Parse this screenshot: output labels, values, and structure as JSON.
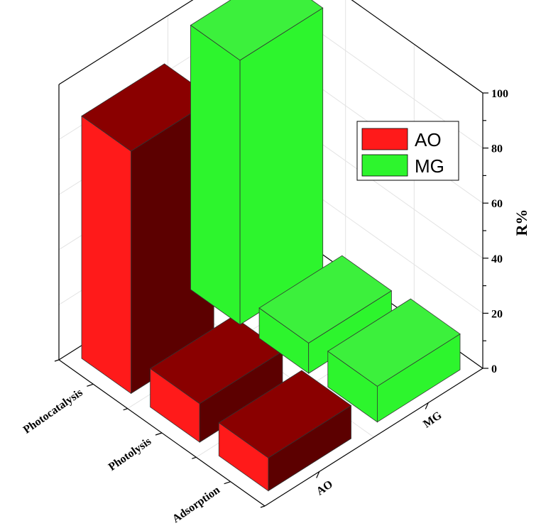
{
  "chart_data": {
    "type": "bar",
    "categories": [
      "Photocatalysis",
      "Photolysis",
      "Adsorption"
    ],
    "series": [
      {
        "name": "AO",
        "values": [
          88,
          14,
          12
        ]
      },
      {
        "name": "MG",
        "values": [
          96,
          11,
          13
        ]
      }
    ],
    "ylabel": "R%",
    "yticks": [
      "0",
      "20",
      "40",
      "60",
      "80",
      "100"
    ],
    "ylim": [
      0,
      100
    ],
    "depth_tick_labels": [
      "AO",
      "MG"
    ],
    "legend": {
      "placement": "upper-right",
      "entries": [
        "AO",
        "MG"
      ]
    },
    "grid": true,
    "three_d": true
  },
  "colors": {
    "AO": {
      "front": "#ff1a1a",
      "side": "#5c0000",
      "top": "#8a0000"
    },
    "MG": {
      "front": "#2df52d",
      "side": "#2df52d",
      "top": "#3cf03c"
    }
  }
}
